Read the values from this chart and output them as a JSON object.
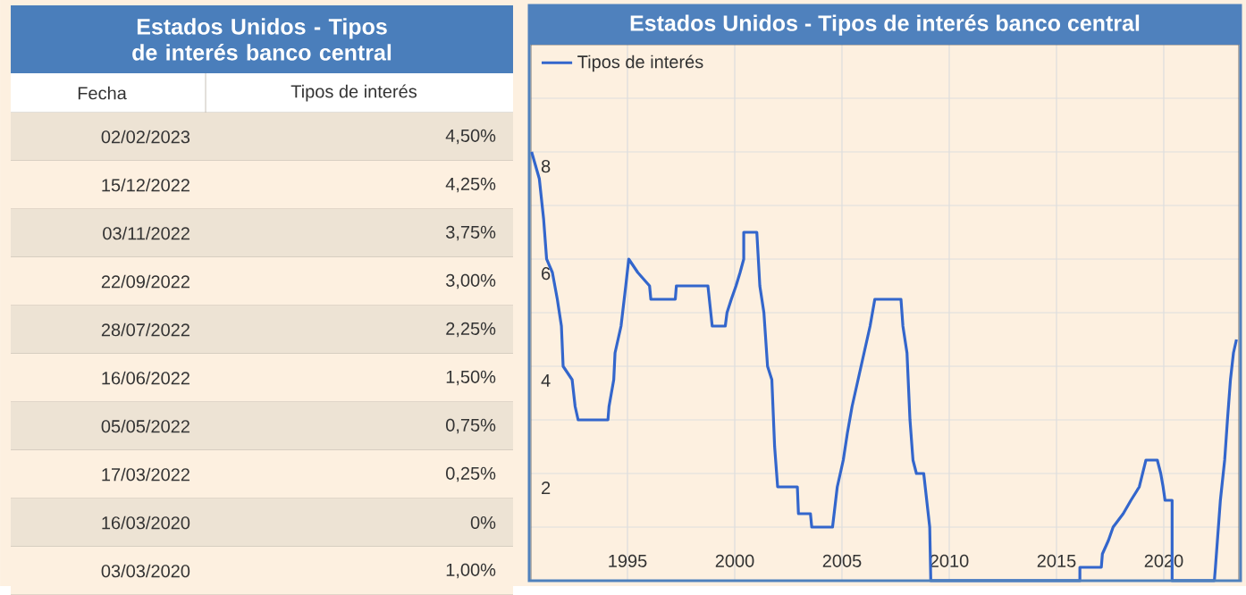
{
  "chart_data": [
    {
      "type": "other",
      "title": "Estados Unidos - Tipos de interés banco central",
      "xlabel": "Fecha",
      "ylabel": "Tipos de interés",
      "categories": [
        "02/02/2023",
        "15/12/2022",
        "03/11/2022",
        "22/09/2022",
        "28/07/2022",
        "16/06/2022",
        "05/05/2022",
        "17/03/2022",
        "16/03/2020",
        "03/03/2020"
      ],
      "value_labels": [
        "4,50%",
        "4,25%",
        "3,75%",
        "3,00%",
        "2,25%",
        "1,50%",
        "0,75%",
        "0,25%",
        "0%",
        "1,00%"
      ]
    },
    {
      "type": "line",
      "title": "Estados Unidos - Tipos de interés banco central",
      "x": [
        1990.53,
        1990.89,
        1991.09,
        1991.23,
        1991.5,
        1991.73,
        1991.92,
        1992.0,
        1992.42,
        1992.56,
        1992.7,
        1994.09,
        1994.14,
        1994.36,
        1994.42,
        1994.7,
        1994.92,
        1995.06,
        1995.48,
        1996.03,
        1996.09,
        1997.23,
        1997.28,
        1998.75,
        1998.95,
        1999.56,
        1999.64,
        1999.84,
        2000.06,
        2000.25,
        2000.42,
        2000.42,
        2001.03,
        2001.17,
        2001.36,
        2001.53,
        2001.73,
        2001.86,
        2002.0,
        2002.92,
        2002.97,
        2003.53,
        2003.59,
        2004.56,
        2004.78,
        2005.06,
        2005.25,
        2005.47,
        2005.75,
        2006.03,
        2006.31,
        2006.53,
        2007.75,
        2007.84,
        2008.03,
        2008.17,
        2008.31,
        2008.47,
        2008.81,
        2008.95,
        2009.09,
        2009.14,
        2016.09,
        2016.09,
        2017.09,
        2017.14,
        2017.42,
        2017.64,
        2018.11,
        2018.47,
        2018.86,
        2019.17,
        2019.7,
        2019.86,
        2019.97,
        2020.06,
        2020.39,
        2020.39,
        2022.36,
        2022.41,
        2022.64,
        2022.84,
        2022.97,
        2023.11,
        2023.25,
        2023.39
      ],
      "series": [
        {
          "name": "Tipos de interés",
          "color": "#3366cc",
          "values": [
            8.0,
            7.5,
            6.75,
            6.0,
            5.75,
            5.25,
            4.75,
            4.0,
            3.75,
            3.25,
            3.0,
            3.0,
            3.25,
            3.75,
            4.25,
            4.75,
            5.5,
            6.0,
            5.75,
            5.5,
            5.25,
            5.25,
            5.5,
            5.5,
            4.75,
            4.75,
            5.0,
            5.25,
            5.5,
            5.75,
            6.0,
            6.5,
            6.5,
            5.5,
            5.0,
            4.0,
            3.75,
            2.5,
            1.75,
            1.75,
            1.25,
            1.25,
            1.0,
            1.0,
            1.75,
            2.25,
            2.75,
            3.25,
            3.75,
            4.25,
            4.75,
            5.25,
            5.25,
            4.75,
            4.25,
            3.0,
            2.25,
            2.0,
            2.0,
            1.5,
            1.0,
            0.0,
            0.0,
            0.25,
            0.25,
            0.5,
            0.75,
            1.0,
            1.25,
            1.5,
            1.75,
            2.25,
            2.25,
            2.0,
            1.75,
            1.5,
            1.5,
            0.0,
            0.0,
            0.25,
            1.5,
            2.25,
            3.0,
            3.75,
            4.25,
            4.5
          ]
        }
      ],
      "xlim": [
        1990.5,
        2023.5
      ],
      "xticks": [
        1995,
        2000,
        2005,
        2010,
        2015,
        2020
      ],
      "ylim": [
        0,
        10
      ],
      "yticks": [
        {
          "value": 1,
          "label": null
        },
        2,
        {
          "value": 3,
          "label": null
        },
        4,
        {
          "value": 5,
          "label": null
        },
        6,
        {
          "value": 7,
          "label": null
        },
        8,
        {
          "value": 9,
          "label": null
        }
      ],
      "grid": true,
      "legend": "top left"
    }
  ]
}
